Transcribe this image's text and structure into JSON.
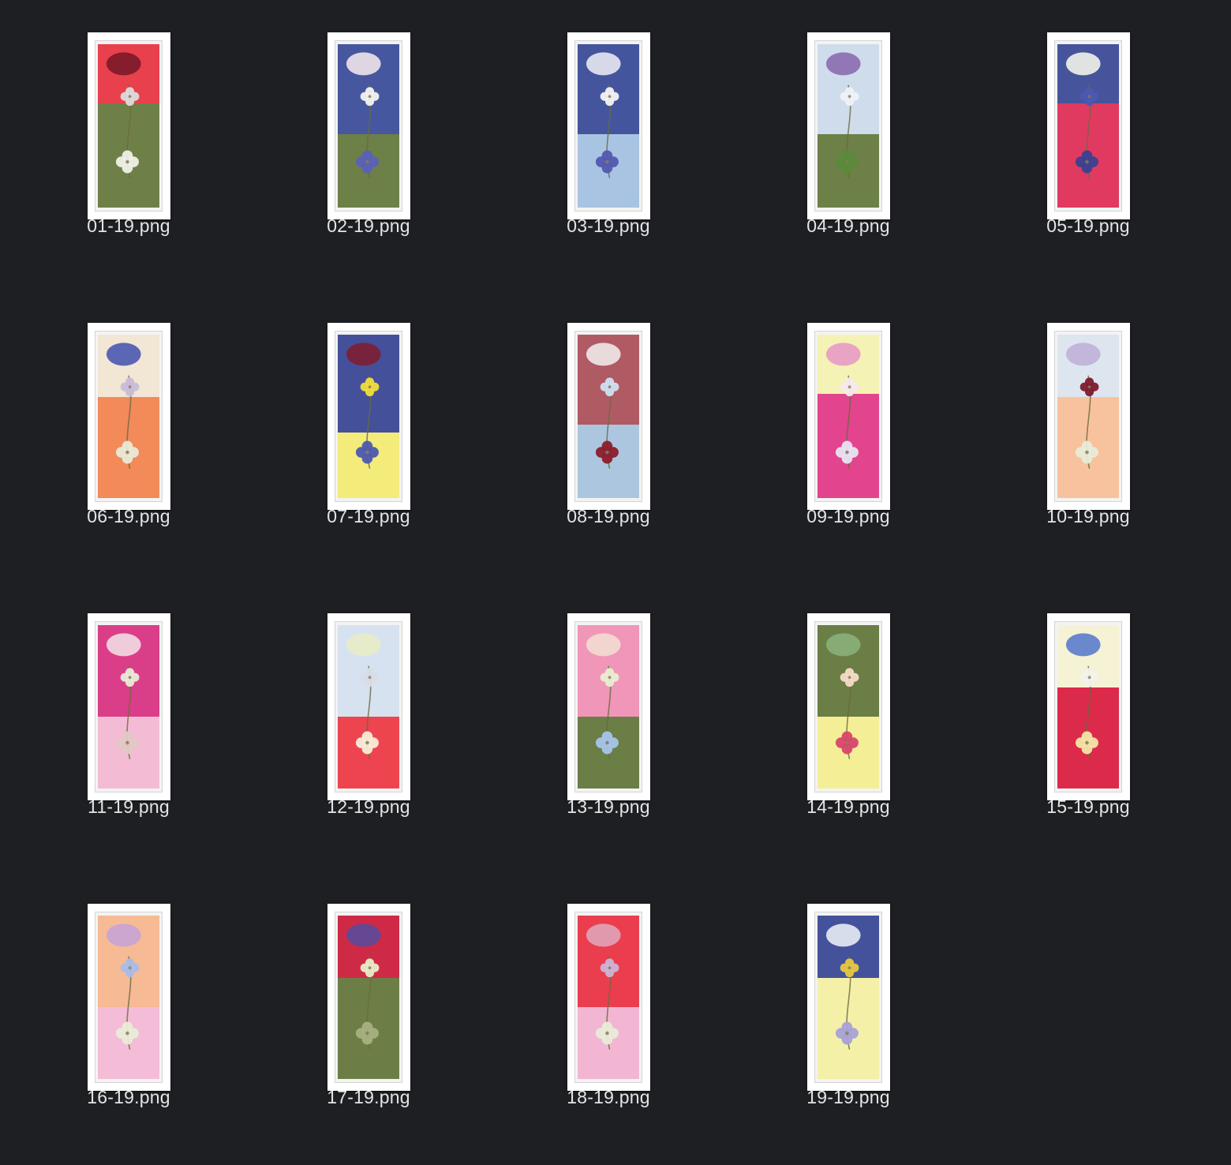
{
  "files": [
    {
      "name": "01-19.png",
      "top": "#e8404c",
      "bottom": "#6e8048",
      "split": 0.36,
      "accent1": "#7a1a2a",
      "accent2": "#dcdcdc",
      "accent3": "#f0f0e8"
    },
    {
      "name": "02-19.png",
      "top": "#4657a0",
      "bottom": "#6c8048",
      "split": 0.55,
      "accent1": "#f0e4ea",
      "accent2": "#f4f4f0",
      "accent3": "#5a60b8"
    },
    {
      "name": "03-19.png",
      "top": "#44559e",
      "bottom": "#a8c4e2",
      "split": 0.55,
      "accent1": "#e8e8f0",
      "accent2": "#f4f4f4",
      "accent3": "#5058b0"
    },
    {
      "name": "04-19.png",
      "top": "#cfdcec",
      "bottom": "#6c8048",
      "split": 0.55,
      "accent1": "#8a6cb0",
      "accent2": "#eef2f8",
      "accent3": "#5a8a3a"
    },
    {
      "name": "05-19.png",
      "top": "#46549c",
      "bottom": "#e03a60",
      "split": 0.36,
      "accent1": "#f2f2ea",
      "accent2": "#4c58b0",
      "accent3": "#3a4090"
    },
    {
      "name": "06-19.png",
      "top": "#f2e6d4",
      "bottom": "#f28a5a",
      "split": 0.38,
      "accent1": "#4a58b0",
      "accent2": "#c8bcd8",
      "accent3": "#e8ead8"
    },
    {
      "name": "07-19.png",
      "top": "#44509a",
      "bottom": "#f4ec7a",
      "split": 0.6,
      "accent1": "#7e1e34",
      "accent2": "#f2de3a",
      "accent3": "#4c58b0"
    },
    {
      "name": "08-19.png",
      "top": "#b05a64",
      "bottom": "#acc6e0",
      "split": 0.55,
      "accent1": "#f0e8e8",
      "accent2": "#cfe0f2",
      "accent3": "#8a1e2a"
    },
    {
      "name": "09-19.png",
      "top": "#f4f2b4",
      "bottom": "#e2448e",
      "split": 0.36,
      "accent1": "#e89ac4",
      "accent2": "#f6e8f0",
      "accent3": "#e8e4f2"
    },
    {
      "name": "10-19.png",
      "top": "#dde6ee",
      "bottom": "#f8c29e",
      "split": 0.38,
      "accent1": "#c0b0d8",
      "accent2": "#7c1a2e",
      "accent3": "#e8ecd8"
    },
    {
      "name": "11-19.png",
      "top": "#da3e88",
      "bottom": "#f4bcd4",
      "split": 0.56,
      "accent1": "#f2dce4",
      "accent2": "#e8ecd8",
      "accent3": "#e2c8c4"
    },
    {
      "name": "12-19.png",
      "top": "#d6e2f0",
      "bottom": "#ee4450",
      "split": 0.56,
      "accent1": "#e8ecc8",
      "accent2": "#d8dce8",
      "accent3": "#f4eed8"
    },
    {
      "name": "13-19.png",
      "top": "#f096b8",
      "bottom": "#6a7e46",
      "split": 0.56,
      "accent1": "#f2dcd0",
      "accent2": "#e8eed0",
      "accent3": "#a8c4ec"
    },
    {
      "name": "14-19.png",
      "top": "#6a7e46",
      "bottom": "#f4ef96",
      "split": 0.56,
      "accent1": "#8ab07a",
      "accent2": "#f6dcc8",
      "accent3": "#d8446a"
    },
    {
      "name": "15-19.png",
      "top": "#f6f2d6",
      "bottom": "#dc2a4a",
      "split": 0.38,
      "accent1": "#5a7ccc",
      "accent2": "#f2f2ec",
      "accent3": "#f2e6a8"
    },
    {
      "name": "16-19.png",
      "top": "#f6ba94",
      "bottom": "#f4bcd6",
      "split": 0.56,
      "accent1": "#c8a4d4",
      "accent2": "#a8bce8",
      "accent3": "#e8ecd8"
    },
    {
      "name": "17-19.png",
      "top": "#ce2a46",
      "bottom": "#6c7e46",
      "split": 0.38,
      "accent1": "#5a4a9c",
      "accent2": "#e8ecc8",
      "accent3": "#a8b080"
    },
    {
      "name": "18-19.png",
      "top": "#ea3e4e",
      "bottom": "#f2b6d2",
      "split": 0.56,
      "accent1": "#e0a4b8",
      "accent2": "#ccb4d8",
      "accent3": "#e8ecd8"
    },
    {
      "name": "19-19.png",
      "top": "#44529c",
      "bottom": "#f4f0a8",
      "split": 0.38,
      "accent1": "#e8ecf4",
      "accent2": "#e8c840",
      "accent3": "#a8a0d8"
    }
  ]
}
